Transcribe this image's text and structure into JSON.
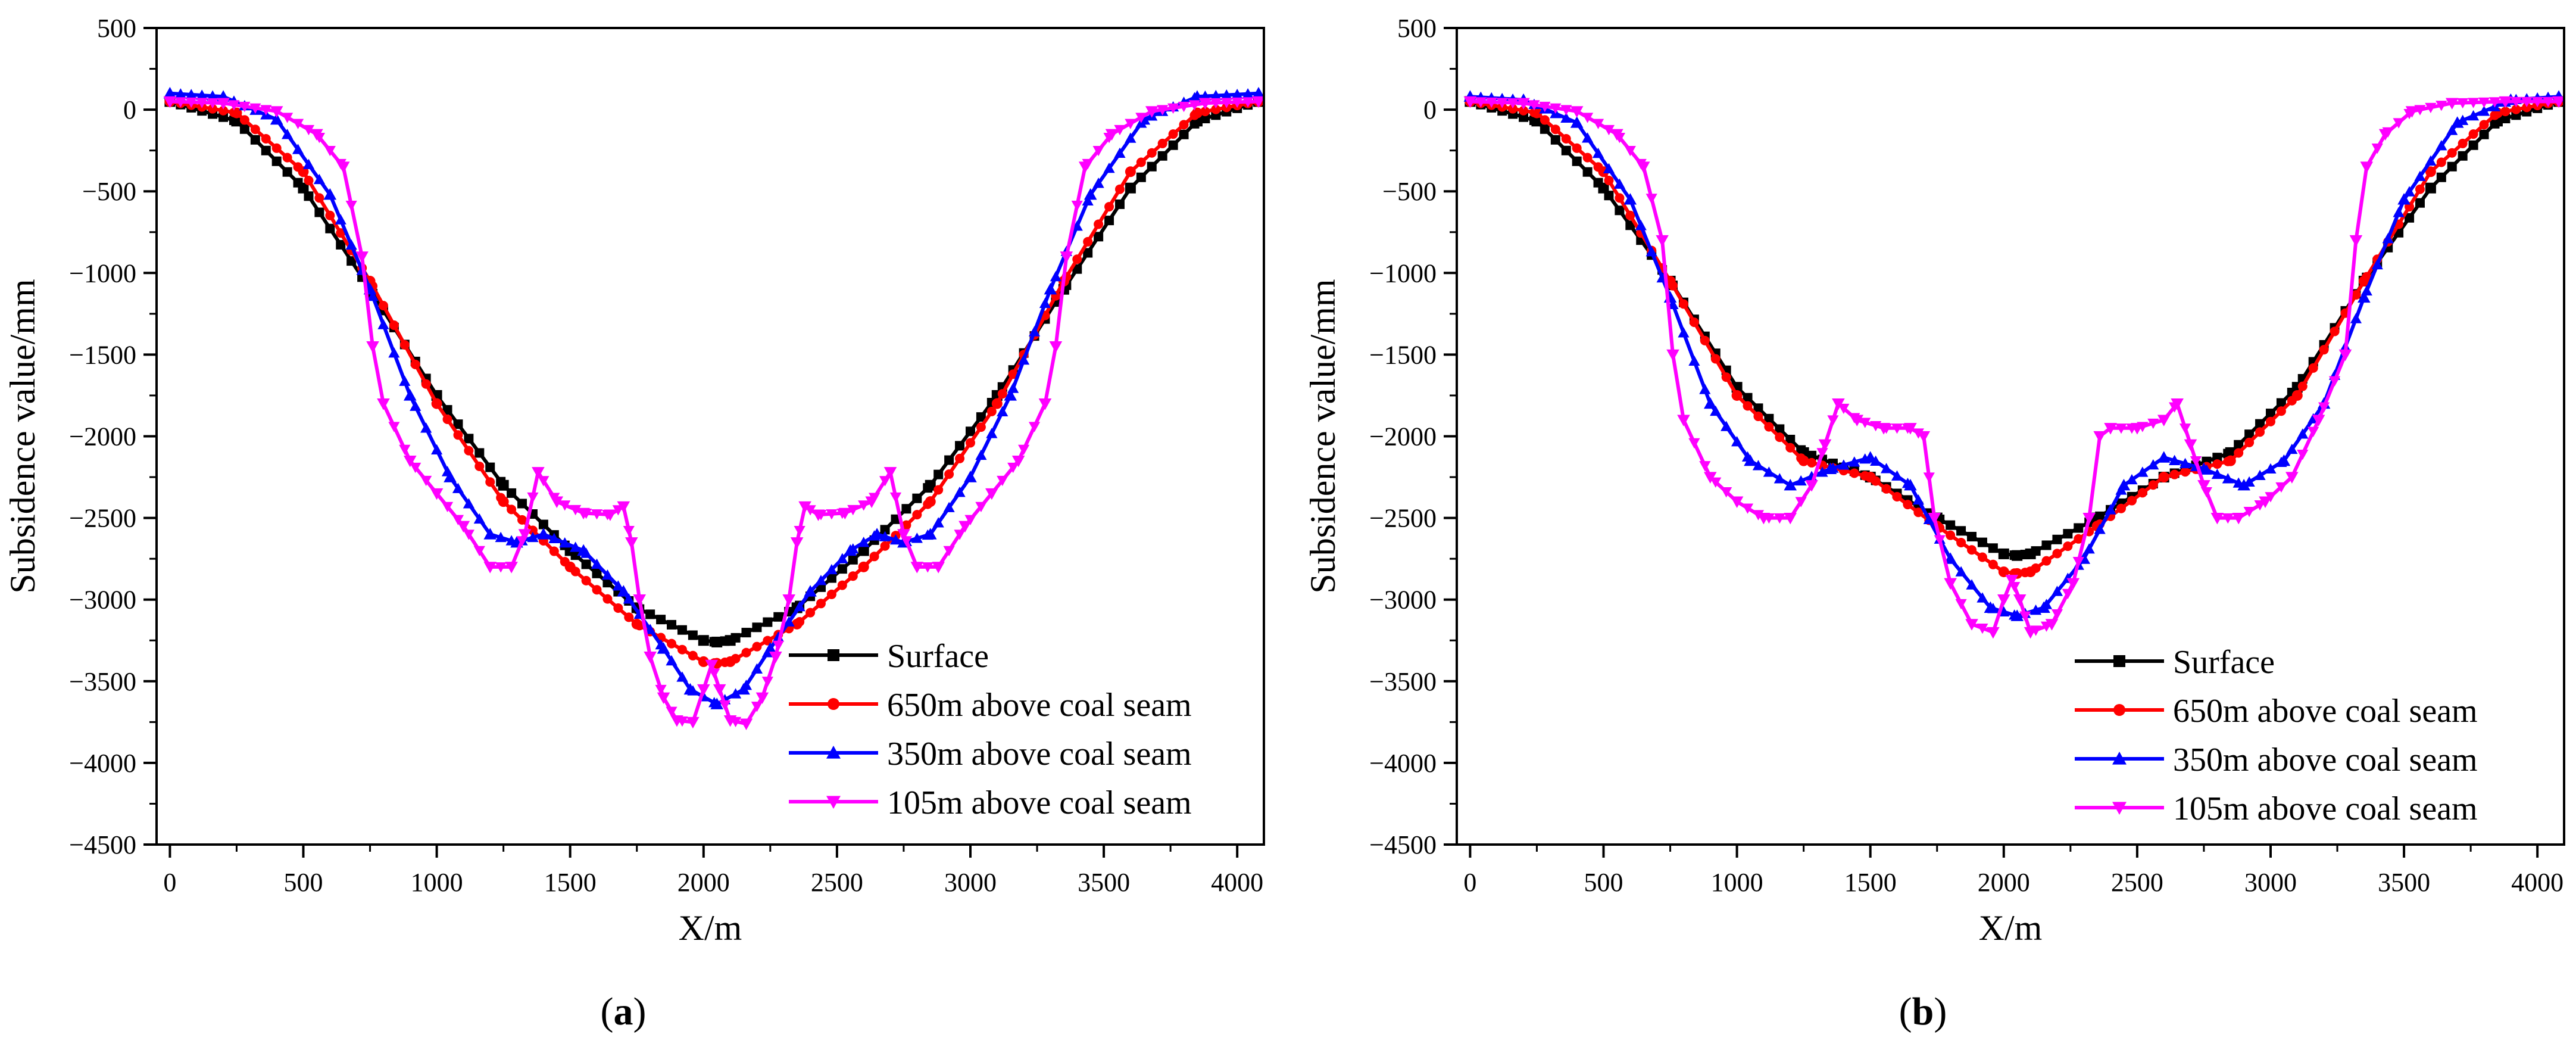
{
  "chart_data": [
    {
      "type": "line",
      "panel_label": "a",
      "title": "",
      "xlabel": "X/m",
      "ylabel": "Subsidence value/mm",
      "xlim": [
        -50,
        4100
      ],
      "ylim": [
        -4500,
        500
      ],
      "xticks": [
        0,
        500,
        1000,
        1500,
        2000,
        2500,
        3000,
        3500,
        4000
      ],
      "yticks": [
        500,
        0,
        -500,
        -1000,
        -1500,
        -2000,
        -2500,
        -3000,
        -3500,
        -4000,
        -4500
      ],
      "legend_position": "bottom-right",
      "series": [
        {
          "name": "Surface",
          "color": "#000000",
          "marker": "square",
          "x": [
            0,
            250,
            500,
            750,
            1000,
            1250,
            1500,
            1750,
            2000,
            2050,
            2100,
            2350,
            2600,
            2850,
            3100,
            3350,
            3600,
            3850,
            4080
          ],
          "y": [
            50,
            -70,
            -480,
            -1100,
            -1750,
            -2300,
            -2700,
            -3050,
            -3250,
            -3260,
            -3250,
            -3050,
            -2700,
            -2300,
            -1750,
            -1100,
            -480,
            -70,
            50
          ]
        },
        {
          "name": "650m above coal seam",
          "color": "#ff0000",
          "marker": "circle",
          "x": [
            0,
            250,
            500,
            750,
            1000,
            1250,
            1500,
            1750,
            2000,
            2050,
            2100,
            2350,
            2600,
            2850,
            3100,
            3350,
            3600,
            3850,
            4080
          ],
          "y": [
            50,
            -20,
            -380,
            -1050,
            -1800,
            -2400,
            -2800,
            -3150,
            -3380,
            -3390,
            -3380,
            -3150,
            -2800,
            -2400,
            -1800,
            -1050,
            -380,
            -20,
            50
          ]
        },
        {
          "name": "350m above coal seam",
          "color": "#0000ff",
          "marker": "triangle-up",
          "x": [
            0,
            200,
            400,
            600,
            750,
            900,
            1050,
            1200,
            1300,
            1400,
            1550,
            1700,
            1850,
            1950,
            2050,
            2150,
            2250,
            2400,
            2550,
            2650,
            2750,
            2850,
            3000,
            3150,
            3300,
            3450,
            3650,
            3850,
            4080
          ],
          "y": [
            100,
            80,
            -60,
            -520,
            -1100,
            -1750,
            -2250,
            -2600,
            -2650,
            -2600,
            -2700,
            -2950,
            -3300,
            -3550,
            -3640,
            -3550,
            -3300,
            -2950,
            -2700,
            -2600,
            -2650,
            -2600,
            -2250,
            -1750,
            -1100,
            -520,
            -60,
            80,
            100
          ]
        },
        {
          "name": "105m above coal seam",
          "color": "#ff00ff",
          "marker": "triangle-down",
          "x": [
            0,
            200,
            400,
            550,
            650,
            720,
            760,
            800,
            900,
            1000,
            1100,
            1200,
            1280,
            1330,
            1380,
            1450,
            1550,
            1650,
            1700,
            1730,
            1760,
            1800,
            1850,
            1900,
            1960,
            2000,
            2030,
            2060,
            2100,
            2160,
            2220,
            2270,
            2320,
            2350,
            2380,
            2430,
            2530,
            2630,
            2700,
            2750,
            2800,
            2880,
            2980,
            3080,
            3180,
            3280,
            3320,
            3360,
            3430,
            3530,
            3680,
            3880,
            4080
          ],
          "y": [
            50,
            40,
            -10,
            -150,
            -350,
            -900,
            -1450,
            -1800,
            -2150,
            -2350,
            -2550,
            -2800,
            -2800,
            -2600,
            -2220,
            -2400,
            -2470,
            -2480,
            -2430,
            -2650,
            -3000,
            -3350,
            -3600,
            -3740,
            -3750,
            -3550,
            -3400,
            -3550,
            -3740,
            -3760,
            -3600,
            -3350,
            -3000,
            -2650,
            -2430,
            -2480,
            -2470,
            -2400,
            -2220,
            -2600,
            -2800,
            -2800,
            -2550,
            -2350,
            -2150,
            -1800,
            -1450,
            -900,
            -350,
            -150,
            -10,
            40,
            50
          ]
        }
      ]
    },
    {
      "type": "line",
      "panel_label": "b",
      "title": "",
      "xlabel": "X/m",
      "ylabel": "Subsidence value/mm",
      "xlim": [
        -50,
        4100
      ],
      "ylim": [
        -4500,
        500
      ],
      "xticks": [
        0,
        500,
        1000,
        1500,
        2000,
        2500,
        3000,
        3500,
        4000
      ],
      "yticks": [
        500,
        0,
        -500,
        -1000,
        -1500,
        -2000,
        -2500,
        -3000,
        -3500,
        -4000,
        -4500
      ],
      "legend_position": "bottom-right",
      "series": [
        {
          "name": "Surface",
          "color": "#000000",
          "marker": "square",
          "x": [
            0,
            250,
            500,
            750,
            1000,
            1250,
            1500,
            1750,
            2000,
            2050,
            2100,
            2350,
            2600,
            2850,
            3100,
            3350,
            3600,
            3850,
            4080
          ],
          "y": [
            50,
            -70,
            -480,
            -1050,
            -1700,
            -2100,
            -2250,
            -2500,
            -2720,
            -2730,
            -2720,
            -2500,
            -2250,
            -2100,
            -1700,
            -1050,
            -480,
            -70,
            50
          ]
        },
        {
          "name": "650m above coal seam",
          "color": "#ff0000",
          "marker": "circle",
          "x": [
            0,
            250,
            500,
            750,
            1000,
            1250,
            1500,
            1750,
            2000,
            2050,
            2100,
            2350,
            2600,
            2850,
            3100,
            3350,
            3600,
            3850,
            4080
          ],
          "y": [
            50,
            -20,
            -380,
            -1050,
            -1750,
            -2150,
            -2250,
            -2550,
            -2830,
            -2840,
            -2830,
            -2550,
            -2250,
            -2150,
            -1750,
            -1050,
            -380,
            -20,
            50
          ]
        },
        {
          "name": "350m above coal seam",
          "color": "#0000ff",
          "marker": "triangle-up",
          "x": [
            0,
            200,
            400,
            600,
            750,
            900,
            1050,
            1200,
            1350,
            1500,
            1650,
            1800,
            1950,
            2050,
            2150,
            2300,
            2450,
            2600,
            2750,
            2900,
            3050,
            3200,
            3350,
            3500,
            3700,
            3900,
            4080
          ],
          "y": [
            80,
            60,
            -80,
            -550,
            -1150,
            -1800,
            -2150,
            -2300,
            -2200,
            -2130,
            -2300,
            -2750,
            -3050,
            -3100,
            -3050,
            -2750,
            -2300,
            -2130,
            -2200,
            -2300,
            -2150,
            -1800,
            -1150,
            -550,
            -80,
            60,
            80
          ]
        },
        {
          "name": "105m above coal seam",
          "color": "#ff00ff",
          "marker": "triangle-down",
          "x": [
            0,
            200,
            400,
            550,
            650,
            720,
            760,
            800,
            900,
            1000,
            1100,
            1200,
            1280,
            1330,
            1380,
            1450,
            1550,
            1650,
            1700,
            1740,
            1800,
            1880,
            1960,
            2000,
            2030,
            2060,
            2100,
            2180,
            2260,
            2320,
            2360,
            2400,
            2500,
            2600,
            2650,
            2700,
            2750,
            2800,
            2880,
            2980,
            3080,
            3180,
            3280,
            3320,
            3360,
            3430,
            3530,
            3680,
            3880,
            4080
          ],
          "y": [
            50,
            40,
            -10,
            -150,
            -350,
            -800,
            -1500,
            -1900,
            -2250,
            -2400,
            -2500,
            -2500,
            -2300,
            -2050,
            -1800,
            -1900,
            -1950,
            -1950,
            -2000,
            -2500,
            -2900,
            -3150,
            -3200,
            -3000,
            -2880,
            -3000,
            -3200,
            -3150,
            -2900,
            -2500,
            -2000,
            -1950,
            -1950,
            -1900,
            -1800,
            -2050,
            -2300,
            -2500,
            -2500,
            -2400,
            -2250,
            -1900,
            -1500,
            -800,
            -350,
            -150,
            -10,
            40,
            50,
            50
          ]
        }
      ]
    }
  ]
}
